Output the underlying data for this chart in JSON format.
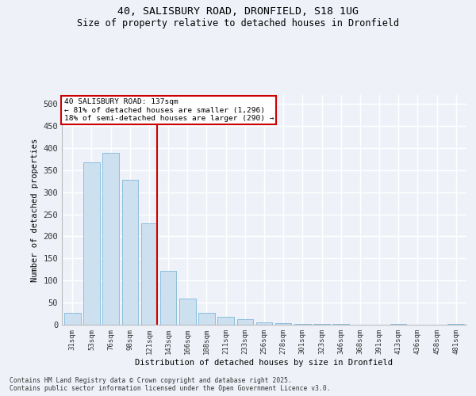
{
  "title_line1": "40, SALISBURY ROAD, DRONFIELD, S18 1UG",
  "title_line2": "Size of property relative to detached houses in Dronfield",
  "xlabel": "Distribution of detached houses by size in Dronfield",
  "ylabel": "Number of detached properties",
  "categories": [
    "31sqm",
    "53sqm",
    "76sqm",
    "98sqm",
    "121sqm",
    "143sqm",
    "166sqm",
    "188sqm",
    "211sqm",
    "233sqm",
    "256sqm",
    "278sqm",
    "301sqm",
    "323sqm",
    "346sqm",
    "368sqm",
    "391sqm",
    "413sqm",
    "436sqm",
    "458sqm",
    "481sqm"
  ],
  "values": [
    27,
    368,
    390,
    328,
    230,
    122,
    60,
    27,
    18,
    13,
    6,
    4,
    2,
    1,
    1,
    0,
    0,
    1,
    0,
    0,
    2
  ],
  "bar_color": "#cce0f0",
  "bar_edge_color": "#6baed6",
  "vline_x": 4.42,
  "vline_color": "#cc0000",
  "annotation_title": "40 SALISBURY ROAD: 137sqm",
  "annotation_line1": "← 81% of detached houses are smaller (1,296)",
  "annotation_line2": "18% of semi-detached houses are larger (290) →",
  "annotation_box_color": "#ffffff",
  "annotation_box_edge": "#cc0000",
  "ylim": [
    0,
    520
  ],
  "yticks": [
    0,
    50,
    100,
    150,
    200,
    250,
    300,
    350,
    400,
    450,
    500
  ],
  "background_color": "#eef2f8",
  "grid_color": "#ffffff",
  "footer_line1": "Contains HM Land Registry data © Crown copyright and database right 2025.",
  "footer_line2": "Contains public sector information licensed under the Open Government Licence v3.0."
}
